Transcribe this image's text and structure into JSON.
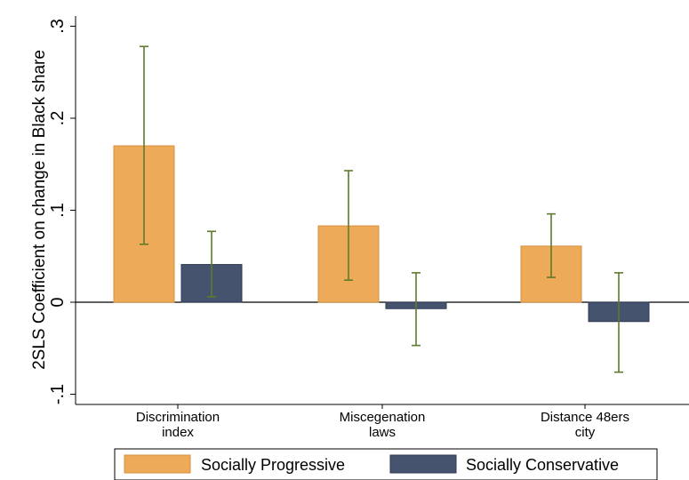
{
  "chart_data": {
    "type": "bar",
    "title": "",
    "xlabel": "",
    "ylabel": "2SLS Coefficient on change in Black share",
    "ylim": [
      -0.115,
      0.31
    ],
    "yticks": [
      -0.1,
      0,
      0.1,
      0.2,
      0.3
    ],
    "ytick_labels": [
      "-.1",
      "0",
      ".1",
      ".2",
      ".3"
    ],
    "categories": [
      [
        "Discrimination",
        "index"
      ],
      [
        "Miscegenation",
        "laws"
      ],
      [
        "Distance 48ers",
        "city"
      ]
    ],
    "series": [
      {
        "name": "Socially Progressive",
        "color": "#EDAA58",
        "values": [
          0.17,
          0.083,
          0.061
        ],
        "ci_low": [
          0.063,
          0.024,
          0.027
        ],
        "ci_high": [
          0.278,
          0.143,
          0.096
        ]
      },
      {
        "name": "Socially Conservative",
        "color": "#45536F",
        "values": [
          0.041,
          -0.007,
          -0.021
        ],
        "ci_low": [
          0.006,
          -0.047,
          -0.076
        ],
        "ci_high": [
          0.077,
          0.032,
          0.032
        ]
      }
    ],
    "errorbar_color": "#5E7A2B",
    "grid": false,
    "legend_position": "bottom"
  }
}
